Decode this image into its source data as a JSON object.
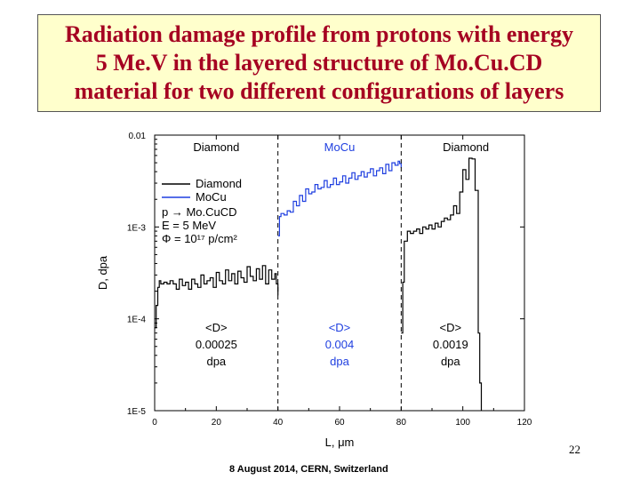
{
  "slide": {
    "title": "Radiation damage profile from protons with energy\n5 Me.V in the layered structure of Mo.Cu.CD\nmaterial for two different configurations of layers",
    "page_number": "22",
    "footer": "8 August 2014, CERN, Switzerland"
  },
  "colors": {
    "diamond": "#000000",
    "mocu": "#1f3fe0",
    "title": "#a50021",
    "title_bg": "#ffffcc"
  },
  "chart_data": {
    "type": "line",
    "xlabel": "L, μm",
    "ylabel": "D, dpa",
    "xlim": [
      0,
      120
    ],
    "ylim": [
      1e-05,
      0.01
    ],
    "yscale": "log",
    "xticks": [
      0,
      20,
      40,
      60,
      80,
      100,
      120
    ],
    "yticks": [
      0.01,
      0.001,
      0.0001,
      1e-05
    ],
    "ytick_labels": [
      "0.01",
      "1E-3",
      "1E-4",
      "1E-5"
    ],
    "legend": {
      "placement": "center-left",
      "entries": [
        "Diamond",
        "MoCu"
      ],
      "lines": [
        "p → Mo.CuCD",
        "E = 5 MeV",
        "Φ = 10¹⁷ p/cm²"
      ]
    },
    "boundaries": [
      40,
      80
    ],
    "layer_labels": [
      {
        "text": "Diamond",
        "x": 20
      },
      {
        "text": "MoCu",
        "x": 60
      },
      {
        "text": "Diamond",
        "x": 101
      }
    ],
    "averages": [
      {
        "label": "<D>",
        "value": "0.00025",
        "unit": "dpa",
        "x": 20
      },
      {
        "label": "<D>",
        "value": "0.004",
        "unit": "dpa",
        "x": 60
      },
      {
        "label": "<D>",
        "value": "0.0019",
        "unit": "dpa",
        "x": 96
      }
    ],
    "series": [
      {
        "name": "Diamond",
        "segments": [
          {
            "x": [
              0,
              0.5,
              1,
              1.5,
              2,
              3,
              4,
              5,
              6,
              7,
              8,
              9,
              10,
              11,
              12,
              13,
              14,
              15,
              16,
              17,
              18,
              19,
              20,
              21,
              22,
              23,
              24,
              25,
              26,
              27,
              28,
              29,
              30,
              31,
              32,
              33,
              34,
              35,
              36,
              37,
              38,
              39,
              39.5,
              40
            ],
            "y": [
              8e-05,
              0.00014,
              0.00022,
              0.00026,
              0.00024,
              0.00025,
              0.00024,
              0.00026,
              0.00024,
              0.00021,
              0.00027,
              0.00023,
              0.00025,
              0.00021,
              0.00027,
              0.00024,
              0.00022,
              0.0003,
              0.00024,
              0.00026,
              0.00028,
              0.00022,
              0.00032,
              0.00026,
              0.00024,
              0.00034,
              0.00026,
              0.00031,
              0.00024,
              0.00033,
              0.00028,
              0.00025,
              0.00037,
              0.00029,
              0.00026,
              0.00035,
              0.00027,
              0.00038,
              0.00024,
              0.00034,
              0.00027,
              0.00031,
              0.00024,
              0.00018
            ]
          },
          {
            "x": [
              80,
              80.5,
              81,
              82,
              83,
              84,
              85,
              86,
              87,
              88,
              89,
              90,
              91,
              92,
              93,
              94,
              95,
              96,
              97,
              98,
              99,
              100,
              101,
              102,
              103,
              104,
              105,
              105.5,
              106
            ],
            "y": [
              7e-05,
              0.00025,
              0.0007,
              0.0009,
              0.00085,
              0.0009,
              0.00095,
              0.00085,
              0.001,
              0.00095,
              0.00105,
              0.00095,
              0.0011,
              0.001,
              0.00115,
              0.00125,
              0.0012,
              0.00135,
              0.0017,
              0.0014,
              0.0024,
              0.0042,
              0.0033,
              0.0056,
              0.0055,
              0.0025,
              7e-05,
              2e-05,
              1e-05
            ]
          }
        ]
      },
      {
        "name": "MoCu",
        "segments": [
          {
            "x": [
              40,
              40.5,
              41,
              42,
              43,
              44,
              45,
              46,
              47,
              48,
              49,
              50,
              51,
              52,
              53,
              54,
              55,
              56,
              57,
              58,
              59,
              60,
              61,
              62,
              63,
              64,
              65,
              66,
              67,
              68,
              69,
              70,
              71,
              72,
              73,
              74,
              75,
              76,
              77,
              78,
              79,
              79.5,
              80
            ],
            "y": [
              0.0008,
              0.0013,
              0.0014,
              0.00135,
              0.0015,
              0.00145,
              0.0019,
              0.0017,
              0.0022,
              0.0019,
              0.0026,
              0.0023,
              0.0024,
              0.0029,
              0.0026,
              0.0027,
              0.0032,
              0.0027,
              0.0029,
              0.0034,
              0.0029,
              0.0031,
              0.0036,
              0.003,
              0.0034,
              0.0039,
              0.0033,
              0.0036,
              0.004,
              0.0035,
              0.0039,
              0.0043,
              0.0036,
              0.0041,
              0.0044,
              0.0038,
              0.0048,
              0.0041,
              0.005,
              0.0047,
              0.0052,
              0.0049,
              0.0044
            ]
          }
        ]
      }
    ]
  }
}
